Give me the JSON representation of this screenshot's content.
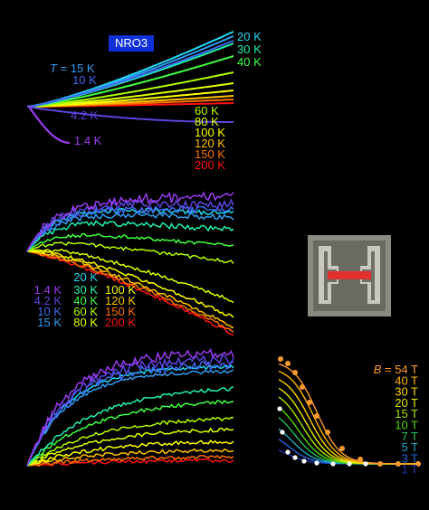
{
  "panel_a": {
    "sample": "NRO3",
    "labels": [
      {
        "symbol": "T",
        "text": "= 15 K",
        "color": "#2f9cf2"
      },
      {
        "text": "10 K",
        "color": "#3d6cf0"
      },
      {
        "text": "4.2 K",
        "color": "#5a45e0"
      },
      {
        "text": "1.4 K",
        "color": "#9a3cf0"
      },
      {
        "text": "20 K",
        "color": "#20d8f5"
      },
      {
        "text": "30 K",
        "color": "#20f0b0"
      },
      {
        "text": "40 K",
        "color": "#40ff40"
      },
      {
        "text": "60 K",
        "color": "#b0ff00"
      },
      {
        "text": "80 K",
        "color": "#e0ff00"
      },
      {
        "text": "100 K",
        "color": "#ffff00"
      },
      {
        "text": "120 K",
        "color": "#ffc000"
      },
      {
        "text": "150 K",
        "color": "#ff7000"
      },
      {
        "text": "200 K",
        "color": "#ff1010"
      }
    ]
  },
  "panel_b": {
    "legend": [
      {
        "text": "1.4 K",
        "color": "#9a3cf0"
      },
      {
        "text": "4.2 K",
        "color": "#5a45e0"
      },
      {
        "text": "10 K",
        "color": "#3d6cf0"
      },
      {
        "text": "15 K",
        "color": "#2f9cf2"
      },
      {
        "text": "20 K",
        "color": "#20d8f5"
      },
      {
        "text": "30 K",
        "color": "#20f0b0"
      },
      {
        "text": "40 K",
        "color": "#40ff40"
      },
      {
        "text": "60 K",
        "color": "#b0ff00"
      },
      {
        "text": "80 K",
        "color": "#e0ff00"
      },
      {
        "text": "100 K",
        "color": "#ffff00"
      },
      {
        "text": "120 K",
        "color": "#ffc000"
      },
      {
        "text": "150 K",
        "color": "#ff7000"
      },
      {
        "text": "200 K",
        "color": "#ff1010"
      }
    ]
  },
  "panel_d": {
    "legend": [
      {
        "symbol": "B",
        "text": "= 54 T",
        "color": "#ff9a30"
      },
      {
        "text": "40 T",
        "color": "#ffb400"
      },
      {
        "text": "30 T",
        "color": "#ffd400"
      },
      {
        "text": "20 T",
        "color": "#e8e800"
      },
      {
        "text": "15 T",
        "color": "#a8e800"
      },
      {
        "text": "10 T",
        "color": "#50d800"
      },
      {
        "text": "7 T",
        "color": "#20c060"
      },
      {
        "text": "5 T",
        "color": "#20a8c8"
      },
      {
        "text": "3 T",
        "color": "#2868e0"
      },
      {
        "text": "1 T",
        "color": "#1838a8"
      }
    ]
  }
}
